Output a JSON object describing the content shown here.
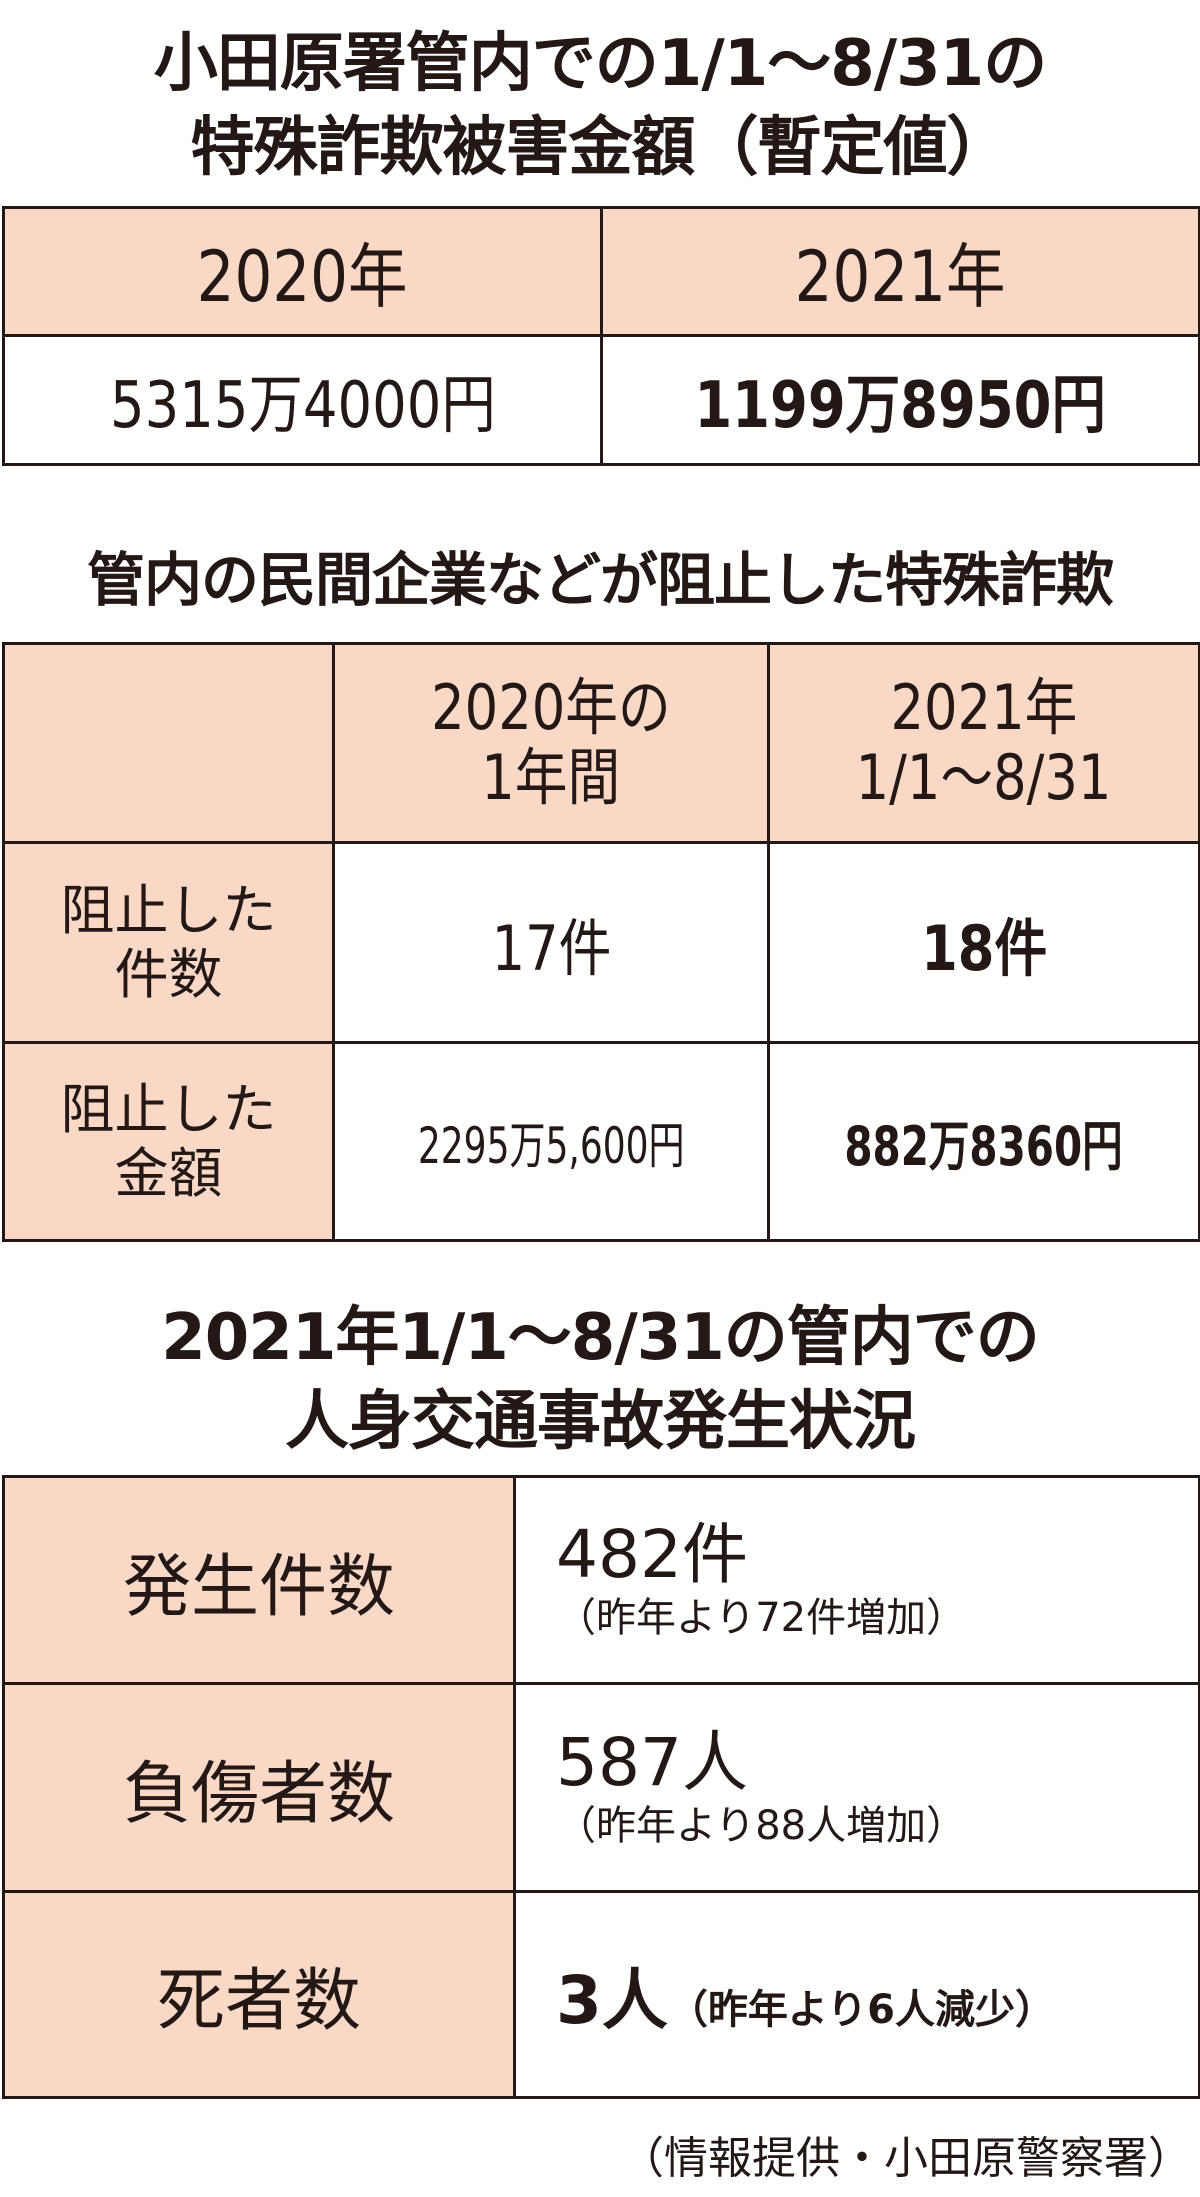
{
  "section1": {
    "title_line1": "小田原署管内での1/1〜8/31の",
    "title_line2": "特殊詐欺被害金額（暫定値）",
    "headers": [
      "2020年",
      "2021年"
    ],
    "values": [
      "5315万4000円",
      "1199万8950円"
    ]
  },
  "section2": {
    "title": "管内の民間企業などが阻止した特殊詐欺",
    "header_col1_line1": "2020年の",
    "header_col1_line2": "1年間",
    "header_col2_line1": "2021年",
    "header_col2_line2": "1/1〜8/31",
    "rows": [
      {
        "label_line1": "阻止した",
        "label_line2": "件数",
        "v2020": "17件",
        "v2021": "18件"
      },
      {
        "label_line1": "阻止した",
        "label_line2": "金額",
        "v2020": "2295万5,600円",
        "v2021": "882万8360円"
      }
    ]
  },
  "section3": {
    "title_line1": "2021年1/1〜8/31の管内での",
    "title_line2": "人身交通事故発生状況",
    "rows": [
      {
        "label": "発生件数",
        "value": "482件",
        "note": "（昨年より72件増加）"
      },
      {
        "label": "負傷者数",
        "value": "587人",
        "note": "（昨年より88人増加）"
      },
      {
        "label": "死者数",
        "value": "3人",
        "note": "（昨年より6人減少）"
      }
    ]
  },
  "footer": "（情報提供・小田原警察署）",
  "colors": {
    "header_fill": "#f9d9c6",
    "border": "#231815",
    "text": "#231815"
  }
}
